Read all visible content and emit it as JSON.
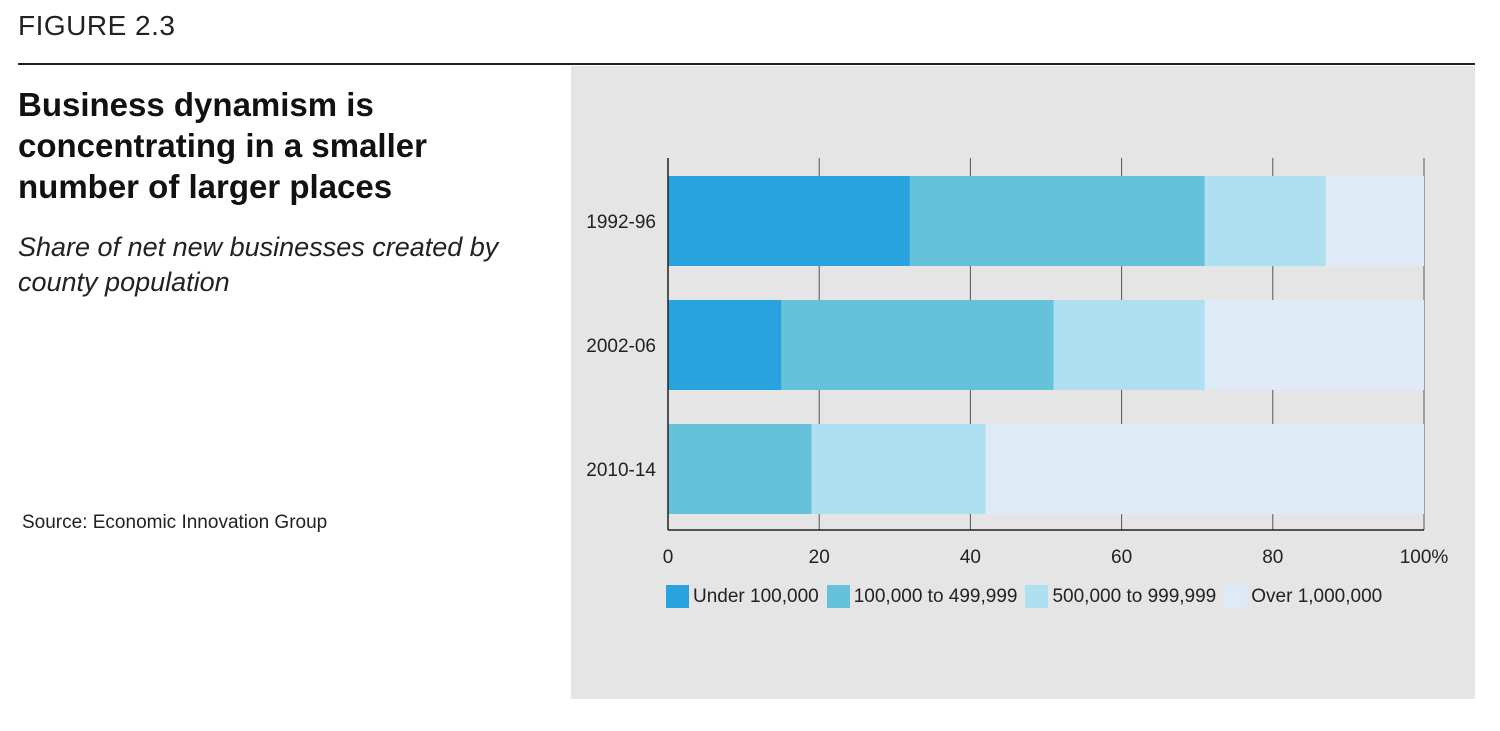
{
  "figure_label": "FIGURE 2.3",
  "source": "Source: Economic Innovation Group",
  "chart_data": {
    "type": "bar",
    "orientation": "horizontal",
    "stacked": true,
    "title": "Business dynamism is concentrating in a smaller number of larger places",
    "subtitle": "Share of net new businesses created by county population",
    "categories": [
      "1992-96",
      "2002-06",
      "2010-14"
    ],
    "series": [
      {
        "name": "Under 100,000",
        "color": "#29a3dd",
        "values": [
          32,
          15,
          0
        ]
      },
      {
        "name": "100,000 to 499,999",
        "color": "#66c1da",
        "values": [
          39,
          36,
          19
        ]
      },
      {
        "name": "500,000 to 999,999",
        "color": "#aee0f2",
        "values": [
          16,
          20,
          23
        ]
      },
      {
        "name": "Over 1,000,000",
        "color": "#deebf6",
        "values": [
          13,
          29,
          58
        ]
      }
    ],
    "xlim": [
      0,
      100
    ],
    "xticks": [
      "0",
      "20",
      "40",
      "60",
      "80",
      "100%"
    ],
    "grid": true,
    "legend_position": "bottom"
  }
}
